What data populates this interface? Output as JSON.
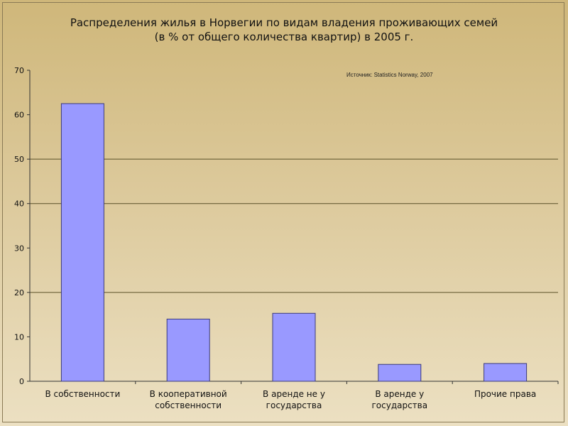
{
  "chart_data": {
    "type": "bar",
    "title_lines": [
      "Распределения жилья в Норвегии по видам владения проживающих семей",
      "(в % от общего количества квартир) в 2005 г."
    ],
    "source_note": "Источник: Statistics Norway, 2007",
    "categories": [
      [
        "В собственности"
      ],
      [
        "В кооперативной",
        "собственности"
      ],
      [
        "В аренде не у",
        "государства"
      ],
      [
        "В аренде у",
        "государства"
      ],
      [
        "Прочие права"
      ]
    ],
    "values": [
      62.5,
      14,
      15.3,
      3.8,
      4
    ],
    "ylim": [
      0,
      70
    ],
    "yticks": [
      0,
      10,
      20,
      30,
      40,
      50,
      60,
      70
    ],
    "gridlines": [
      20,
      40,
      50
    ],
    "colors": {
      "bar": "#9999ff",
      "bar_border": "#3a3a7a",
      "grid": "#5a5028"
    }
  }
}
